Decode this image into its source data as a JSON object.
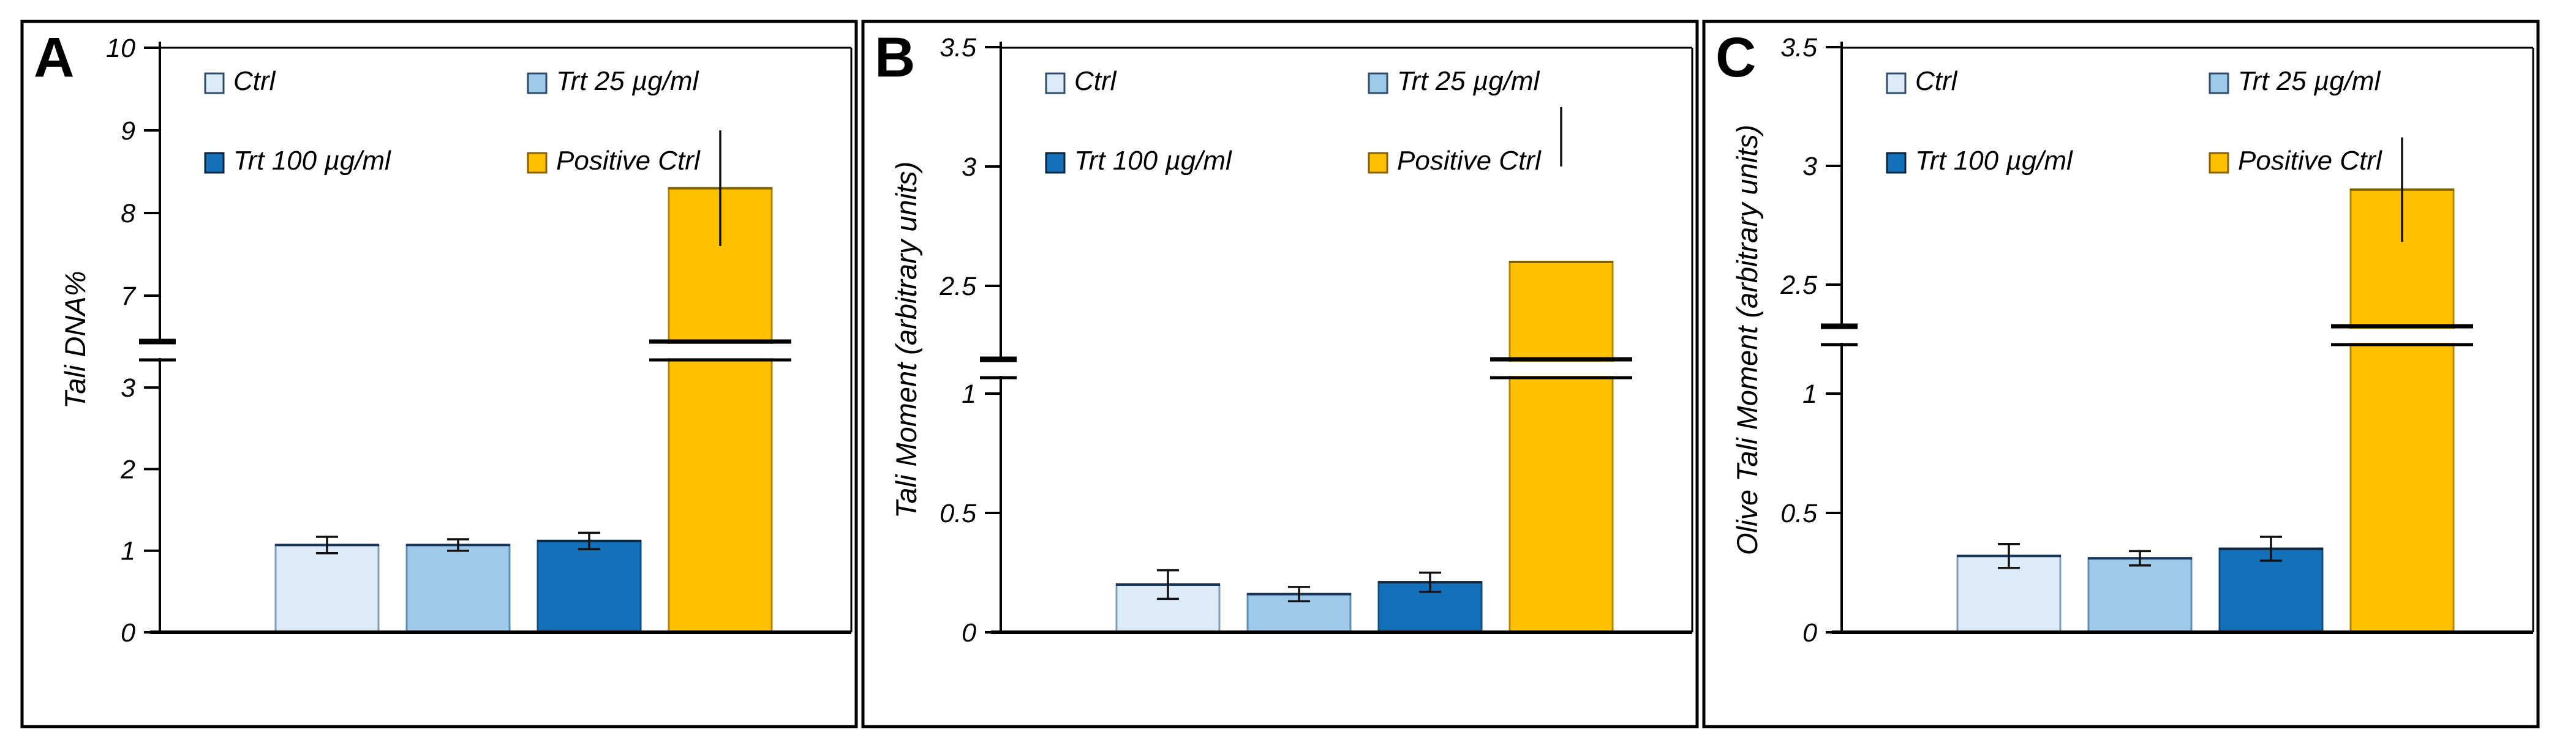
{
  "figure": {
    "description": "Three-panel comet assay bar figure with broken y-axes",
    "background": "#ffffff",
    "border_color": "#000000"
  },
  "legend": {
    "items": [
      {
        "label": "Ctrl",
        "fill": "#dcebf7",
        "stroke": "#2e4d6b"
      },
      {
        "label": "Trt 25 µg/ml",
        "fill": "#9ec9e9",
        "stroke": "#2e4d6b"
      },
      {
        "label": "Trt 100 µg/ml",
        "fill": "#1470b8",
        "stroke": "#0b2740"
      },
      {
        "label": "Positive Ctrl",
        "fill": "#ffc000",
        "stroke": "#8a6100"
      }
    ],
    "position": "top-inside, two columns by two rows"
  },
  "chart_data": [
    {
      "type": "bar",
      "panel_label": "A",
      "title": "",
      "xlabel": "",
      "ylabel": "Tali DNA%",
      "categories": [
        "Ctrl",
        "Trt 25 µg/ml",
        "Trt 100 µg/ml",
        "Positive Ctrl"
      ],
      "values": [
        1.07,
        1.07,
        1.12,
        8.3
      ],
      "errors": [
        0.1,
        0.07,
        0.1,
        0.7
      ],
      "bar_fills": [
        "#dcebf7",
        "#9ec9e9",
        "#1470b8",
        "#ffc000"
      ],
      "bar_strokes": [
        "#7f9db9",
        "#5f8fb4",
        "#0d4f86",
        "#b38600"
      ],
      "bar_edges": [
        "#16355c",
        "#16355c",
        "#0b2740",
        "#7f6000"
      ],
      "error_caps": [
        true,
        true,
        true,
        false
      ],
      "y_axis": {
        "lower_ticks": [
          0,
          1,
          2,
          3
        ],
        "upper_ticks": [
          7,
          8,
          9,
          10
        ],
        "break_between": [
          3.5,
          6.5
        ],
        "ylim": [
          0,
          10
        ]
      },
      "grid": false,
      "legend_position": "top-inside"
    },
    {
      "type": "bar",
      "panel_label": "B",
      "title": "",
      "xlabel": "",
      "ylabel": "Tali Moment (arbitrary units)",
      "categories": [
        "Ctrl",
        "Trt 25 µg/ml",
        "Trt 100 µg/ml",
        "Positive Ctrl"
      ],
      "values": [
        0.2,
        0.16,
        0.21,
        2.6
      ],
      "errors": [
        0.06,
        0.03,
        0.04,
        0.4
      ],
      "bar_fills": [
        "#dcebf7",
        "#9ec9e9",
        "#1470b8",
        "#ffc000"
      ],
      "bar_strokes": [
        "#7f9db9",
        "#5f8fb4",
        "#0d4f86",
        "#b38600"
      ],
      "bar_edges": [
        "#16355c",
        "#16355c",
        "#0b2740",
        "#7f6000"
      ],
      "error_caps": [
        true,
        true,
        true,
        false
      ],
      "y_axis": {
        "lower_ticks": [
          0,
          0.5,
          1
        ],
        "upper_ticks": [
          2.5,
          3,
          3.5
        ],
        "break_between": [
          1.2,
          2.35
        ],
        "ylim": [
          0,
          3.5
        ]
      },
      "grid": false,
      "legend_position": "top-inside"
    },
    {
      "type": "bar",
      "panel_label": "C",
      "title": "",
      "xlabel": "",
      "ylabel": "Olive Tali Moment (arbitrary units)",
      "categories": [
        "Ctrl",
        "Trt 25 µg/ml",
        "Trt 100 µg/ml",
        "Positive Ctrl"
      ],
      "values": [
        0.32,
        0.31,
        0.35,
        2.9
      ],
      "errors": [
        0.05,
        0.03,
        0.05,
        0.22
      ],
      "bar_fills": [
        "#dcebf7",
        "#9ec9e9",
        "#1470b8",
        "#ffc000"
      ],
      "bar_strokes": [
        "#7f9db9",
        "#5f8fb4",
        "#0d4f86",
        "#b38600"
      ],
      "bar_edges": [
        "#16355c",
        "#16355c",
        "#0b2740",
        "#7f6000"
      ],
      "error_caps": [
        true,
        true,
        true,
        false
      ],
      "y_axis": {
        "lower_ticks": [
          0,
          0.5,
          1
        ],
        "upper_ticks": [
          2.5,
          3,
          3.5
        ],
        "break_between": [
          1.15,
          2.35
        ],
        "ylim": [
          0,
          3.5
        ]
      },
      "grid": false,
      "legend_position": "top-inside"
    }
  ]
}
